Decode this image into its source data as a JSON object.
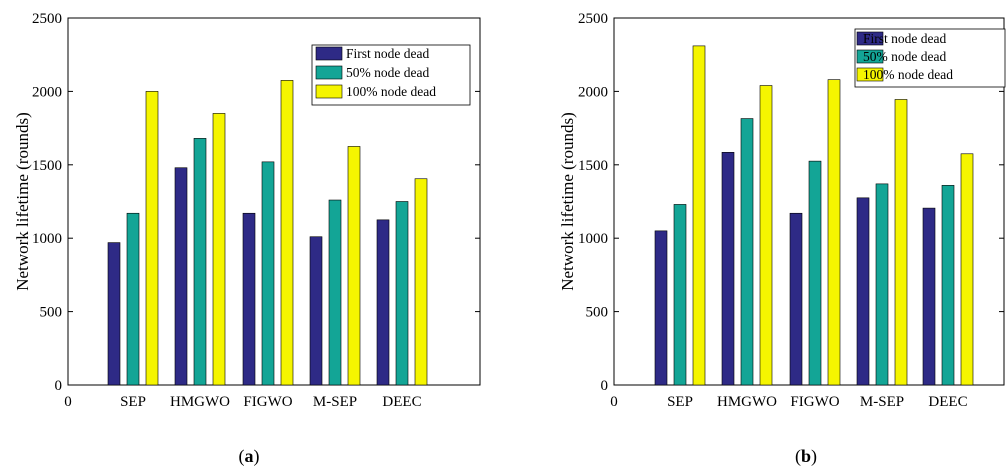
{
  "chart_data": [
    {
      "type": "bar",
      "caption_open": "(",
      "caption_letter": "a",
      "caption_close": ")",
      "categories": [
        "SEP",
        "HMGWO",
        "FIGWO",
        "M-SEP",
        "DEEC"
      ],
      "extra_x_tick": "0",
      "ylabel": "Network lifetime (rounds)",
      "ylim": [
        0,
        2500
      ],
      "yticks": [
        "0",
        "500",
        "1000",
        "1500",
        "2000",
        "2500"
      ],
      "grid": false,
      "legend_position": "top-right",
      "series": [
        {
          "name": "First node dead",
          "color": "#2e2a86",
          "values": [
            970,
            1480,
            1170,
            1010,
            1125
          ]
        },
        {
          "name": "50% node dead",
          "color": "#13a596",
          "values": [
            1170,
            1680,
            1520,
            1260,
            1250
          ]
        },
        {
          "name": "100%  node dead",
          "color": "#f5f500",
          "values": [
            2000,
            1850,
            2075,
            1625,
            1405
          ]
        }
      ]
    },
    {
      "type": "bar",
      "caption_open": "(",
      "caption_letter": "b",
      "caption_close": ")",
      "categories": [
        "SEP",
        "HMGWO",
        "FIGWO",
        "M-SEP",
        "DEEC"
      ],
      "extra_x_tick": "0",
      "ylabel": "Network lifetime (rounds)",
      "ylim": [
        0,
        2500
      ],
      "yticks": [
        "0",
        "500",
        "1000",
        "1500",
        "2000",
        "2500"
      ],
      "grid": false,
      "legend_position": "top-right",
      "series": [
        {
          "name": "First node dead",
          "color": "#2e2a86",
          "values": [
            1050,
            1585,
            1170,
            1275,
            1205
          ]
        },
        {
          "name": "50% node dead",
          "color": "#13a596",
          "values": [
            1230,
            1815,
            1525,
            1370,
            1360
          ]
        },
        {
          "name": "100% node dead",
          "color": "#f5f500",
          "values": [
            2310,
            2040,
            2080,
            1945,
            1575
          ]
        }
      ]
    }
  ]
}
